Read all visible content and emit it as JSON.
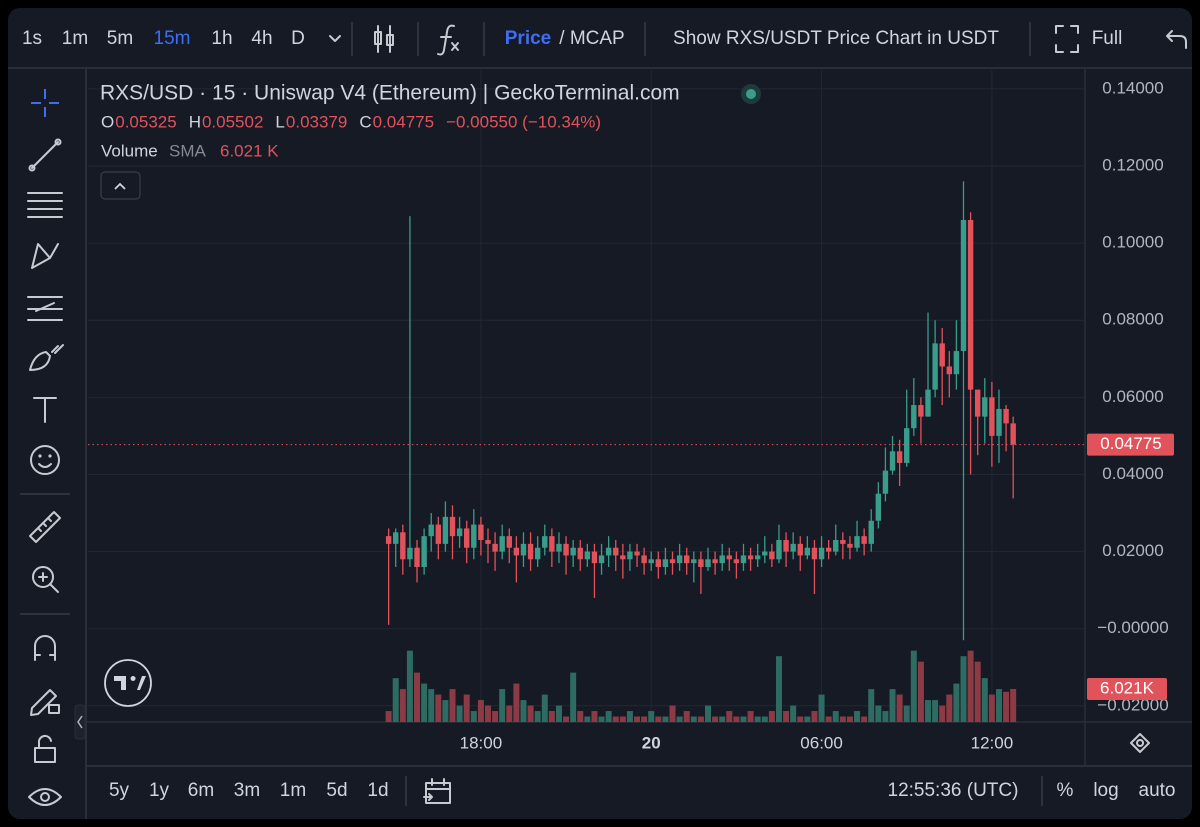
{
  "toolbar": {
    "intervals": [
      "1s",
      "1m",
      "5m",
      "15m",
      "1h",
      "4h",
      "D"
    ],
    "active_interval": "15m",
    "price_label": "Price",
    "mcap_label": "/ MCAP",
    "show_pair": "Show RXS/USDT Price Chart in USDT",
    "full": "Full"
  },
  "chart_data": {
    "type": "candlestick",
    "title": "RXS/USD · 15 · Uniswap V4 (Ethereum) | GeckoTerminal.com",
    "legend": {
      "labels": [
        "O",
        "H",
        "L",
        "C"
      ],
      "values": [
        "0.05325",
        "0.05502",
        "0.03379",
        "0.04775"
      ],
      "change": "−0.00550 (−10.34%)"
    },
    "volume_title": "Volume",
    "volume_sma": "SMA",
    "volume_value": "6.021 K",
    "last_price_label": "0.04775",
    "last_volume_label": "6.021K",
    "up_color": "#3a9d8c",
    "down_color": "#e2525b",
    "volume_up_color": "#2d6b63",
    "volume_down_color": "#8c3b45",
    "x": [
      14.75,
      15,
      15.25,
      15.5,
      15.75,
      16,
      16.25,
      16.5,
      16.75,
      17,
      17.25,
      17.5,
      17.75,
      18,
      18.25,
      18.5,
      18.75,
      19,
      19.25,
      19.5,
      19.75,
      20,
      20.25,
      20.5,
      20.75,
      21,
      21.25,
      21.5,
      21.75,
      22,
      22.25,
      22.5,
      22.75,
      23,
      23.25,
      23.5,
      23.75,
      24,
      24.25,
      24.5,
      24.75,
      25,
      25.25,
      25.5,
      25.75,
      26,
      26.25,
      26.5,
      26.75,
      27,
      27.25,
      27.5,
      27.75,
      28,
      28.25,
      28.5,
      28.75,
      29,
      29.25,
      29.5,
      29.75,
      30,
      30.25,
      30.5,
      30.75,
      31,
      31.25,
      31.5,
      31.75,
      32,
      32.25,
      32.5,
      32.75,
      33,
      33.25,
      33.5,
      33.75,
      34,
      34.25,
      34.5,
      34.75,
      35,
      35.25,
      35.5,
      35.75,
      36,
      36.25,
      36.5,
      36.75
    ],
    "open": [
      0.024,
      0.022,
      0.025,
      0.018,
      0.021,
      0.016,
      0.024,
      0.027,
      0.022,
      0.029,
      0.024,
      0.026,
      0.021,
      0.027,
      0.023,
      0.022,
      0.02,
      0.024,
      0.021,
      0.019,
      0.022,
      0.018,
      0.021,
      0.024,
      0.02,
      0.022,
      0.019,
      0.021,
      0.018,
      0.02,
      0.017,
      0.019,
      0.021,
      0.019,
      0.018,
      0.02,
      0.019,
      0.017,
      0.018,
      0.016,
      0.018,
      0.017,
      0.019,
      0.017,
      0.018,
      0.016,
      0.018,
      0.017,
      0.019,
      0.018,
      0.017,
      0.019,
      0.018,
      0.019,
      0.02,
      0.018,
      0.023,
      0.02,
      0.022,
      0.019,
      0.021,
      0.018,
      0.021,
      0.02,
      0.023,
      0.022,
      0.021,
      0.024,
      0.022,
      0.028,
      0.035,
      0.041,
      0.046,
      0.043,
      0.052,
      0.058,
      0.055,
      0.062,
      0.074,
      0.068,
      0.066,
      0.072,
      0.106,
      0.062,
      0.055,
      0.06,
      0.05,
      0.057,
      0.05325
    ],
    "high": [
      0.026,
      0.026,
      0.027,
      0.107,
      0.023,
      0.026,
      0.03,
      0.029,
      0.033,
      0.032,
      0.029,
      0.028,
      0.031,
      0.029,
      0.026,
      0.025,
      0.027,
      0.026,
      0.024,
      0.025,
      0.025,
      0.024,
      0.027,
      0.026,
      0.025,
      0.024,
      0.023,
      0.023,
      0.022,
      0.022,
      0.022,
      0.024,
      0.023,
      0.022,
      0.022,
      0.022,
      0.021,
      0.02,
      0.02,
      0.021,
      0.02,
      0.022,
      0.021,
      0.02,
      0.02,
      0.021,
      0.02,
      0.022,
      0.021,
      0.02,
      0.022,
      0.021,
      0.022,
      0.024,
      0.022,
      0.027,
      0.025,
      0.025,
      0.024,
      0.024,
      0.023,
      0.024,
      0.023,
      0.027,
      0.025,
      0.024,
      0.028,
      0.026,
      0.031,
      0.038,
      0.047,
      0.05,
      0.049,
      0.062,
      0.065,
      0.06,
      0.082,
      0.08,
      0.078,
      0.072,
      0.08,
      0.116,
      0.108,
      0.062,
      0.065,
      0.064,
      0.062,
      0.058,
      0.05502
    ],
    "low": [
      0.001,
      0.016,
      0.014,
      0.016,
      0.012,
      0.014,
      0.02,
      0.018,
      0.02,
      0.018,
      0.021,
      0.017,
      0.018,
      0.019,
      0.017,
      0.015,
      0.018,
      0.017,
      0.012,
      0.016,
      0.015,
      0.016,
      0.019,
      0.016,
      0.017,
      0.014,
      0.016,
      0.015,
      0.016,
      0.008,
      0.014,
      0.016,
      0.015,
      0.013,
      0.015,
      0.016,
      0.014,
      0.015,
      0.013,
      0.014,
      0.014,
      0.015,
      0.014,
      0.012,
      0.009,
      0.015,
      0.014,
      0.015,
      0.015,
      0.013,
      0.015,
      0.015,
      0.016,
      0.017,
      0.016,
      0.017,
      0.016,
      0.018,
      0.015,
      0.018,
      0.009,
      0.016,
      0.018,
      0.019,
      0.018,
      0.018,
      0.02,
      0.019,
      0.02,
      0.026,
      0.033,
      0.04,
      0.037,
      0.042,
      0.05,
      0.048,
      0.055,
      0.06,
      0.058,
      0.06,
      0.062,
      -0.003,
      0.04,
      0.045,
      0.048,
      0.042,
      0.043,
      0.046,
      0.03379
    ],
    "close": [
      0.022,
      0.025,
      0.018,
      0.021,
      0.016,
      0.024,
      0.027,
      0.022,
      0.029,
      0.024,
      0.026,
      0.021,
      0.027,
      0.023,
      0.022,
      0.02,
      0.024,
      0.021,
      0.019,
      0.022,
      0.018,
      0.021,
      0.024,
      0.02,
      0.022,
      0.019,
      0.021,
      0.018,
      0.02,
      0.017,
      0.019,
      0.021,
      0.019,
      0.018,
      0.02,
      0.019,
      0.017,
      0.018,
      0.016,
      0.018,
      0.017,
      0.019,
      0.017,
      0.018,
      0.016,
      0.018,
      0.017,
      0.019,
      0.018,
      0.017,
      0.019,
      0.018,
      0.019,
      0.02,
      0.018,
      0.023,
      0.02,
      0.022,
      0.019,
      0.021,
      0.018,
      0.021,
      0.02,
      0.023,
      0.022,
      0.021,
      0.024,
      0.022,
      0.028,
      0.035,
      0.041,
      0.046,
      0.043,
      0.052,
      0.058,
      0.055,
      0.062,
      0.074,
      0.068,
      0.066,
      0.072,
      0.106,
      0.062,
      0.055,
      0.06,
      0.05,
      0.057,
      0.05325,
      0.04775
    ],
    "volume": [
      2000,
      8000,
      6000,
      13000,
      9000,
      7000,
      6000,
      5000,
      4000,
      6000,
      3000,
      5000,
      2000,
      4000,
      3000,
      2000,
      6000,
      3000,
      7000,
      4000,
      3000,
      2000,
      5000,
      2000,
      3000,
      1000,
      9000,
      2000,
      1000,
      2000,
      1000,
      2000,
      1000,
      1000,
      2000,
      1000,
      1000,
      2000,
      1000,
      1000,
      3000,
      1000,
      2000,
      1000,
      1000,
      3000,
      1000,
      1000,
      2000,
      1000,
      1000,
      2000,
      1000,
      1000,
      2000,
      12000,
      2000,
      3000,
      1000,
      1000,
      2000,
      5000,
      1000,
      2000,
      1000,
      1000,
      2000,
      1000,
      6000,
      3000,
      2000,
      6000,
      5000,
      3000,
      13000,
      11000,
      4000,
      4000,
      3000,
      5000,
      7000,
      12000,
      13000,
      11000,
      8000,
      5000,
      6000,
      5500,
      6021
    ],
    "xlim": [
      4.16,
      39.28
    ],
    "xticks": [
      {
        "value": 18,
        "label": "18:00"
      },
      {
        "value": 24,
        "label": "20"
      },
      {
        "value": 30,
        "label": "06:00"
      },
      {
        "value": 36,
        "label": "12:00"
      }
    ],
    "ylim": [
      -0.0242,
      0.1449
    ],
    "yticks": [
      {
        "value": 0.14,
        "label": "0.14000"
      },
      {
        "value": 0.12,
        "label": "0.12000"
      },
      {
        "value": 0.1,
        "label": "0.10000"
      },
      {
        "value": 0.08,
        "label": "0.08000"
      },
      {
        "value": 0.06,
        "label": "0.06000"
      },
      {
        "value": 0.04,
        "label": "0.04000"
      },
      {
        "value": 0.02,
        "label": "0.02000"
      },
      {
        "value": 0,
        "label": "−0.00000"
      },
      {
        "value": -0.02,
        "label": "−0.02000"
      }
    ],
    "vlim": [
      0,
      35000
    ],
    "grid": true
  },
  "bottom": {
    "ranges": [
      "5y",
      "1y",
      "6m",
      "3m",
      "1m",
      "5d",
      "1d"
    ],
    "time": "12:55:36 (UTC)",
    "options": [
      "%",
      "log",
      "auto"
    ]
  }
}
